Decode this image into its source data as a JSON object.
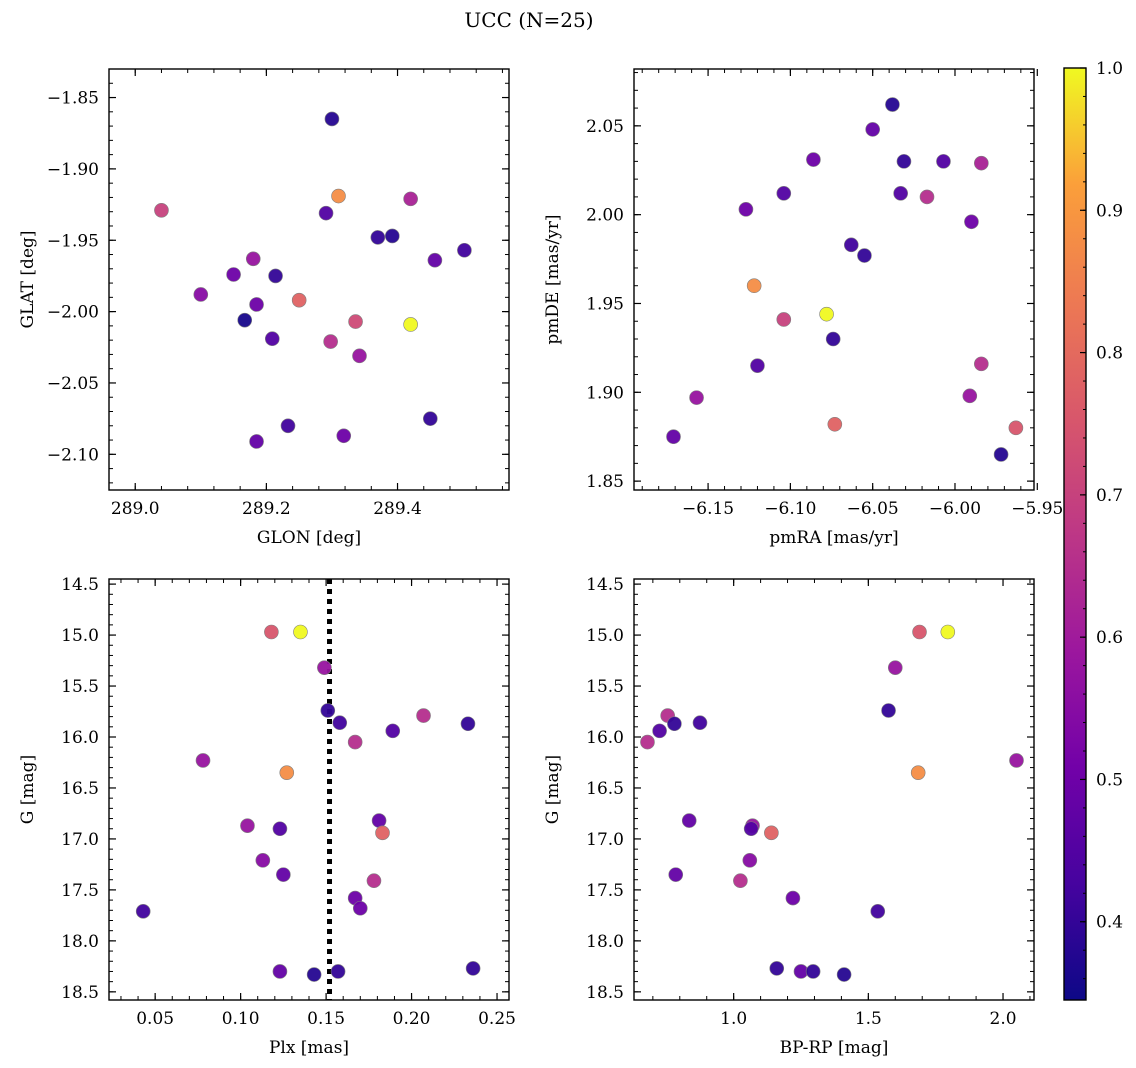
{
  "suptitle": "UCC (N=25)",
  "colorbar": {
    "min": 0.345,
    "max": 1.0,
    "ticks": [
      "0.4",
      "0.5",
      "0.6",
      "0.7",
      "0.8",
      "0.9",
      "1.0"
    ],
    "tick_values": [
      0.4,
      0.5,
      0.6,
      0.7,
      0.8,
      0.9,
      1.0
    ],
    "colormap": "plasma"
  },
  "chart_data": [
    {
      "id": "p1",
      "type": "scatter",
      "xlabel": "GLON [deg]",
      "ylabel": "GLAT [deg]",
      "xlim": [
        288.96,
        289.57
      ],
      "ylim": [
        -2.125,
        -1.83
      ],
      "y_inverted": false,
      "xticks": [
        289.0,
        289.2,
        289.4
      ],
      "xtick_labels": [
        "289.0",
        "289.2",
        "289.4"
      ],
      "yticks": [
        -1.85,
        -1.9,
        -1.95,
        -2.0,
        -2.05,
        -2.1
      ],
      "ytick_labels": [
        "−1.85",
        "−1.90",
        "−1.95",
        "−2.00",
        "−2.05",
        "−2.10"
      ],
      "points": [
        {
          "x": 289.3,
          "y": -1.865,
          "c": 0.38
        },
        {
          "x": 289.31,
          "y": -1.919,
          "c": 0.88
        },
        {
          "x": 289.42,
          "y": -1.921,
          "c": 0.62
        },
        {
          "x": 289.04,
          "y": -1.929,
          "c": 0.7
        },
        {
          "x": 289.291,
          "y": -1.931,
          "c": 0.45
        },
        {
          "x": 289.37,
          "y": -1.948,
          "c": 0.4
        },
        {
          "x": 289.392,
          "y": -1.947,
          "c": 0.38
        },
        {
          "x": 289.502,
          "y": -1.957,
          "c": 0.42
        },
        {
          "x": 289.18,
          "y": -1.963,
          "c": 0.58
        },
        {
          "x": 289.457,
          "y": -1.964,
          "c": 0.48
        },
        {
          "x": 289.15,
          "y": -1.974,
          "c": 0.5
        },
        {
          "x": 289.214,
          "y": -1.975,
          "c": 0.4
        },
        {
          "x": 289.1,
          "y": -1.988,
          "c": 0.55
        },
        {
          "x": 289.25,
          "y": -1.992,
          "c": 0.78
        },
        {
          "x": 289.185,
          "y": -1.995,
          "c": 0.5
        },
        {
          "x": 289.167,
          "y": -2.006,
          "c": 0.36
        },
        {
          "x": 289.336,
          "y": -2.007,
          "c": 0.72
        },
        {
          "x": 289.42,
          "y": -2.009,
          "c": 1.0
        },
        {
          "x": 289.209,
          "y": -2.019,
          "c": 0.45
        },
        {
          "x": 289.298,
          "y": -2.021,
          "c": 0.65
        },
        {
          "x": 289.342,
          "y": -2.031,
          "c": 0.58
        },
        {
          "x": 289.45,
          "y": -2.075,
          "c": 0.4
        },
        {
          "x": 289.233,
          "y": -2.08,
          "c": 0.42
        },
        {
          "x": 289.318,
          "y": -2.087,
          "c": 0.5
        },
        {
          "x": 289.185,
          "y": -2.091,
          "c": 0.48
        }
      ]
    },
    {
      "id": "p2",
      "type": "scatter",
      "xlabel": "pmRA [mas/yr]",
      "ylabel": "pmDE [mas/yr]",
      "xlim": [
        -6.195,
        -5.952
      ],
      "ylim": [
        1.845,
        2.082
      ],
      "y_inverted": false,
      "xticks": [
        -6.15,
        -6.1,
        -6.05,
        -6.0,
        -5.95
      ],
      "xtick_labels": [
        "−6.15",
        "−6.10",
        "−6.05",
        "−6.00",
        "−5.95"
      ],
      "yticks": [
        1.85,
        1.9,
        1.95,
        2.0,
        2.05
      ],
      "ytick_labels": [
        "1.85",
        "1.90",
        "1.95",
        "2.00",
        "2.05"
      ],
      "points": [
        {
          "x": -6.038,
          "y": 2.062,
          "c": 0.38
        },
        {
          "x": -6.05,
          "y": 2.048,
          "c": 0.48
        },
        {
          "x": -6.086,
          "y": 2.031,
          "c": 0.5
        },
        {
          "x": -6.031,
          "y": 2.03,
          "c": 0.4
        },
        {
          "x": -6.007,
          "y": 2.03,
          "c": 0.45
        },
        {
          "x": -5.984,
          "y": 2.029,
          "c": 0.62
        },
        {
          "x": -6.104,
          "y": 2.012,
          "c": 0.45
        },
        {
          "x": -6.033,
          "y": 2.012,
          "c": 0.45
        },
        {
          "x": -6.017,
          "y": 2.01,
          "c": 0.65
        },
        {
          "x": -6.127,
          "y": 2.003,
          "c": 0.5
        },
        {
          "x": -5.99,
          "y": 1.996,
          "c": 0.5
        },
        {
          "x": -6.063,
          "y": 1.983,
          "c": 0.42
        },
        {
          "x": -6.055,
          "y": 1.977,
          "c": 0.4
        },
        {
          "x": -6.122,
          "y": 1.96,
          "c": 0.88
        },
        {
          "x": -6.078,
          "y": 1.944,
          "c": 1.0
        },
        {
          "x": -6.104,
          "y": 1.941,
          "c": 0.7
        },
        {
          "x": -6.074,
          "y": 1.93,
          "c": 0.4
        },
        {
          "x": -5.984,
          "y": 1.916,
          "c": 0.65
        },
        {
          "x": -6.12,
          "y": 1.915,
          "c": 0.45
        },
        {
          "x": -5.991,
          "y": 1.898,
          "c": 0.58
        },
        {
          "x": -6.157,
          "y": 1.897,
          "c": 0.58
        },
        {
          "x": -6.073,
          "y": 1.882,
          "c": 0.78
        },
        {
          "x": -5.963,
          "y": 1.88,
          "c": 0.75
        },
        {
          "x": -6.171,
          "y": 1.875,
          "c": 0.48
        },
        {
          "x": -5.972,
          "y": 1.865,
          "c": 0.38
        }
      ]
    },
    {
      "id": "p3",
      "type": "scatter",
      "xlabel": "Plx [mas]",
      "ylabel": "G [mag]",
      "xlim": [
        0.023,
        0.257
      ],
      "ylim": [
        14.45,
        18.58
      ],
      "y_inverted": true,
      "xticks": [
        0.05,
        0.1,
        0.15,
        0.2,
        0.25
      ],
      "xtick_labels": [
        "0.05",
        "0.10",
        "0.15",
        "0.20",
        "0.25"
      ],
      "yticks": [
        14.5,
        15.0,
        15.5,
        16.0,
        16.5,
        17.0,
        17.5,
        18.0,
        18.5
      ],
      "ytick_labels": [
        "14.5",
        "15.0",
        "15.5",
        "16.0",
        "16.5",
        "17.0",
        "17.5",
        "18.0",
        "18.5"
      ],
      "vline": {
        "x": 0.152,
        "style": "dotted"
      },
      "points": [
        {
          "x": 0.118,
          "y": 14.97,
          "c": 0.75
        },
        {
          "x": 0.135,
          "y": 14.97,
          "c": 1.0
        },
        {
          "x": 0.149,
          "y": 15.32,
          "c": 0.58
        },
        {
          "x": 0.151,
          "y": 15.74,
          "c": 0.4
        },
        {
          "x": 0.207,
          "y": 15.79,
          "c": 0.65
        },
        {
          "x": 0.158,
          "y": 15.86,
          "c": 0.42
        },
        {
          "x": 0.233,
          "y": 15.87,
          "c": 0.4
        },
        {
          "x": 0.189,
          "y": 15.94,
          "c": 0.45
        },
        {
          "x": 0.167,
          "y": 16.05,
          "c": 0.65
        },
        {
          "x": 0.078,
          "y": 16.23,
          "c": 0.58
        },
        {
          "x": 0.127,
          "y": 16.35,
          "c": 0.88
        },
        {
          "x": 0.181,
          "y": 16.82,
          "c": 0.48
        },
        {
          "x": 0.104,
          "y": 16.87,
          "c": 0.58
        },
        {
          "x": 0.123,
          "y": 16.9,
          "c": 0.45
        },
        {
          "x": 0.183,
          "y": 16.94,
          "c": 0.78
        },
        {
          "x": 0.113,
          "y": 17.21,
          "c": 0.55
        },
        {
          "x": 0.125,
          "y": 17.35,
          "c": 0.48
        },
        {
          "x": 0.178,
          "y": 17.41,
          "c": 0.65
        },
        {
          "x": 0.167,
          "y": 17.58,
          "c": 0.5
        },
        {
          "x": 0.17,
          "y": 17.68,
          "c": 0.5
        },
        {
          "x": 0.043,
          "y": 17.71,
          "c": 0.42
        },
        {
          "x": 0.236,
          "y": 18.27,
          "c": 0.4
        },
        {
          "x": 0.123,
          "y": 18.3,
          "c": 0.48
        },
        {
          "x": 0.157,
          "y": 18.3,
          "c": 0.4
        },
        {
          "x": 0.143,
          "y": 18.33,
          "c": 0.38
        }
      ]
    },
    {
      "id": "p4",
      "type": "scatter",
      "xlabel": "BP-RP [mag]",
      "ylabel": "G [mag]",
      "xlim": [
        0.63,
        2.115
      ],
      "ylim": [
        14.45,
        18.58
      ],
      "y_inverted": true,
      "xticks": [
        1.0,
        1.5,
        2.0
      ],
      "xtick_labels": [
        "1.0",
        "1.5",
        "2.0"
      ],
      "yticks": [
        14.5,
        15.0,
        15.5,
        16.0,
        16.5,
        17.0,
        17.5,
        18.0,
        18.5
      ],
      "ytick_labels": [
        "14.5",
        "15.0",
        "15.5",
        "16.0",
        "16.5",
        "17.0",
        "17.5",
        "18.0",
        "18.5"
      ],
      "points": [
        {
          "x": 1.69,
          "y": 14.97,
          "c": 0.75
        },
        {
          "x": 1.795,
          "y": 14.97,
          "c": 1.0
        },
        {
          "x": 1.6,
          "y": 15.32,
          "c": 0.58
        },
        {
          "x": 1.575,
          "y": 15.74,
          "c": 0.4
        },
        {
          "x": 0.755,
          "y": 15.79,
          "c": 0.65
        },
        {
          "x": 0.78,
          "y": 15.87,
          "c": 0.4
        },
        {
          "x": 0.875,
          "y": 15.86,
          "c": 0.42
        },
        {
          "x": 0.725,
          "y": 15.94,
          "c": 0.45
        },
        {
          "x": 0.68,
          "y": 16.05,
          "c": 0.65
        },
        {
          "x": 2.05,
          "y": 16.23,
          "c": 0.58
        },
        {
          "x": 1.685,
          "y": 16.35,
          "c": 0.88
        },
        {
          "x": 0.835,
          "y": 16.82,
          "c": 0.48
        },
        {
          "x": 1.07,
          "y": 16.87,
          "c": 0.58
        },
        {
          "x": 1.065,
          "y": 16.9,
          "c": 0.45
        },
        {
          "x": 1.14,
          "y": 16.94,
          "c": 0.78
        },
        {
          "x": 1.06,
          "y": 17.21,
          "c": 0.55
        },
        {
          "x": 0.785,
          "y": 17.35,
          "c": 0.48
        },
        {
          "x": 1.025,
          "y": 17.41,
          "c": 0.65
        },
        {
          "x": 1.22,
          "y": 17.58,
          "c": 0.5
        },
        {
          "x": 1.535,
          "y": 17.71,
          "c": 0.42
        },
        {
          "x": 1.16,
          "y": 18.27,
          "c": 0.4
        },
        {
          "x": 1.25,
          "y": 18.3,
          "c": 0.48
        },
        {
          "x": 1.295,
          "y": 18.3,
          "c": 0.4
        },
        {
          "x": 1.41,
          "y": 18.33,
          "c": 0.38
        }
      ]
    }
  ]
}
